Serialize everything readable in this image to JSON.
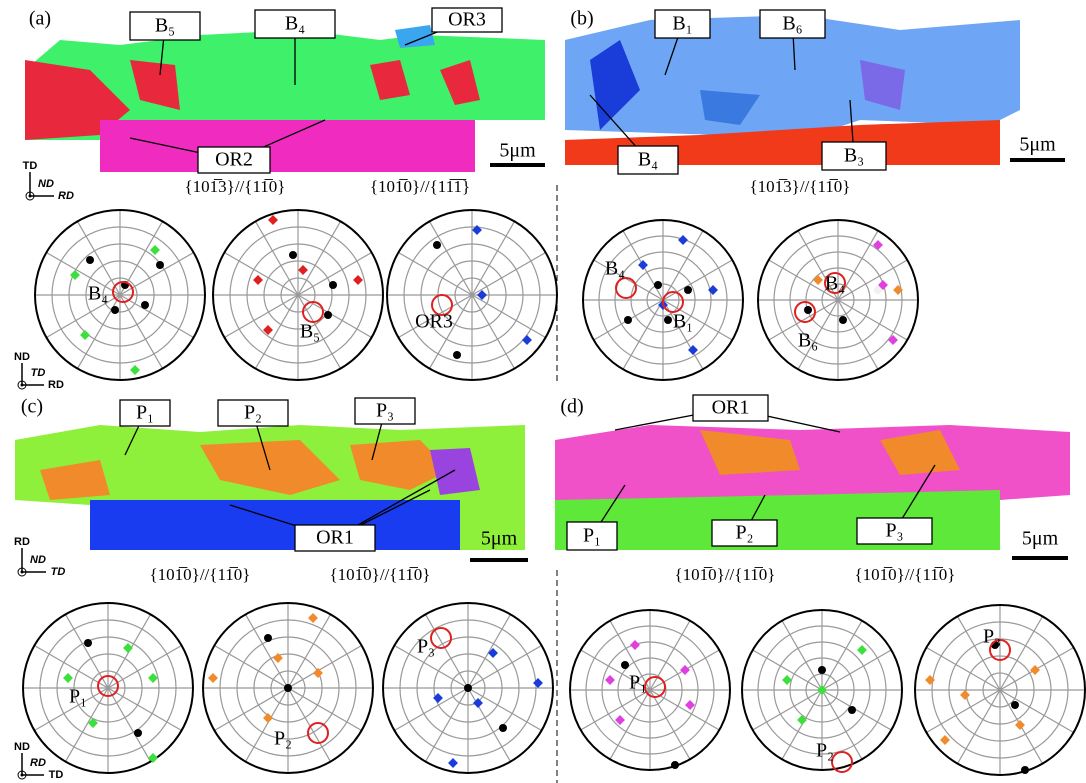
{
  "panels": [
    {
      "label": "(a)",
      "map_labels": [
        "B₅",
        "B₄",
        "OR3",
        "OR2"
      ],
      "scale": "5μm",
      "planes": [
        "{101̅3}//{11̅0}",
        "{101̅0}//{11̅1̅}"
      ],
      "pole_labels": [
        "B₄",
        "B₅",
        "OR3"
      ]
    },
    {
      "label": "(b)",
      "map_labels": [
        "B₁",
        "B₆",
        "B₄",
        "B₃"
      ],
      "scale": "5μm",
      "planes": [
        "{101̅3}//{11̅0}"
      ],
      "pole_labels": [
        "B₄",
        "B₁",
        "B₆",
        "B₄"
      ]
    },
    {
      "label": "(c)",
      "map_labels": [
        "P₁",
        "P₂",
        "P₃",
        "OR1"
      ],
      "scale": "5μm",
      "planes": [
        "{101̅0}//{11̅0}",
        "{101̅0}//{11̅0}"
      ],
      "pole_labels": [
        "P₁",
        "P₂",
        "P₃"
      ]
    },
    {
      "label": "(d)",
      "map_labels": [
        "OR1",
        "P₁",
        "P₂",
        "P₃"
      ],
      "scale": "5μm",
      "planes": [
        "{101̅0}//{11̅0}",
        "{101̅0}//{11̅0}"
      ],
      "pole_labels": [
        "P₁",
        "P₂",
        "P₃"
      ]
    }
  ],
  "triads": [
    [
      "TD",
      "ND",
      "RD"
    ],
    [
      "ND",
      "TD",
      "RD"
    ],
    [
      "RD",
      "ND",
      "TD"
    ],
    [
      "ND",
      "RD",
      "TD"
    ]
  ]
}
